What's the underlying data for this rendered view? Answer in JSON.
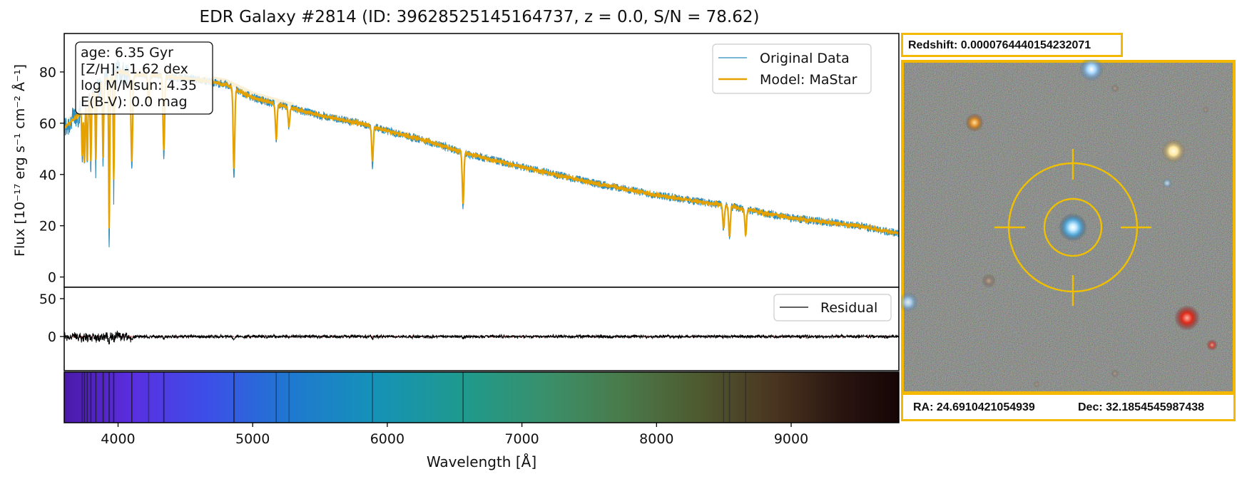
{
  "chart_data": [
    {
      "type": "line",
      "title": "EDR Galaxy #2814 (ID: 39628525145164737, z = 0.0, S/N = 78.62)",
      "xlabel": "Wavelength [Å]",
      "ylabel": "Flux [10⁻¹⁷ erg s⁻¹ cm⁻² Å⁻¹]",
      "xlim": [
        3600,
        9800
      ],
      "ylim": [
        -4,
        95
      ],
      "x_ticks": [
        4000,
        5000,
        6000,
        7000,
        8000,
        9000
      ],
      "y_ticks": [
        0,
        20,
        40,
        60,
        80
      ],
      "grid": false,
      "legend_position": "upper-right",
      "annotation": [
        "age: 6.35 Gyr",
        "[Z/H]: -1.62 dex",
        "log M/Msun: 4.35",
        "E(B-V): 0.0 mag"
      ],
      "series": [
        {
          "name": "Original Data",
          "color": "#2b8cbe"
        },
        {
          "name": "Model: MaStar",
          "color": "#e5a100"
        }
      ],
      "continuum": {
        "x": [
          3600,
          3700,
          3800,
          3900,
          4000,
          4100,
          4200,
          4400,
          4600,
          4800,
          5000,
          5200,
          5500,
          5800,
          6000,
          6300,
          6600,
          7000,
          7500,
          8000,
          8500,
          9000,
          9500,
          9800
        ],
        "y": [
          58,
          63,
          70,
          77,
          80,
          79,
          79,
          78,
          77,
          75,
          70,
          67,
          63,
          60,
          57,
          53,
          48,
          43,
          37,
          32,
          28,
          23,
          20,
          17
        ]
      },
      "absorption_lines": {
        "x": [
          3734,
          3750,
          3771,
          3798,
          3835,
          3889,
          3934,
          3968,
          4102,
          4227,
          4340,
          4861,
          5175,
          5270,
          5890,
          6563,
          8498,
          8542,
          8662
        ],
        "depth": [
          20,
          25,
          26,
          28,
          30,
          34,
          65,
          46,
          38,
          12,
          32,
          35,
          15,
          8,
          15,
          22,
          10,
          13,
          11
        ]
      }
    },
    {
      "type": "line",
      "title": "",
      "xlim": [
        3600,
        9800
      ],
      "ylim": [
        -45,
        65
      ],
      "y_ticks": [
        0,
        50
      ],
      "legend_position": "upper-right",
      "series": [
        {
          "name": "Residual",
          "color": "#000000"
        }
      ],
      "zero_line_color": "#e03030"
    }
  ],
  "spectrum_bar": {
    "x_range": [
      3600,
      9800
    ]
  },
  "cutout": {
    "redshift_label": "Redshift: 0.0000764440154232071",
    "ra_label": "RA: 24.6910421054939",
    "dec_label": "Dec: 32.1854545987438",
    "frame_color": "#f5b800",
    "reticle_color": "#f0c000"
  }
}
